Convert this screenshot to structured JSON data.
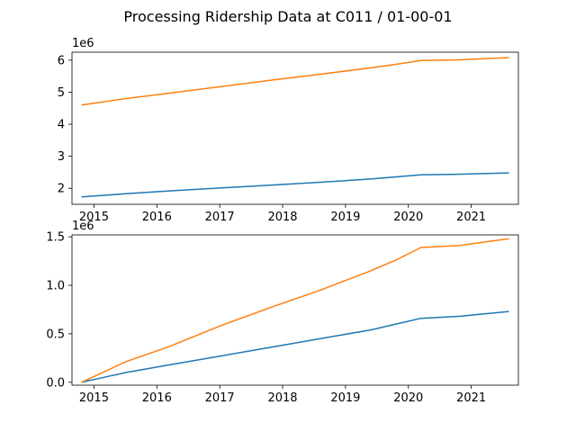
{
  "figure": {
    "title": "Processing Ridership Data at C011 / 01-00-01"
  },
  "chart_data": [
    {
      "type": "line",
      "title": "",
      "xlabel": "",
      "ylabel": "",
      "offset_label": "1e6",
      "xlim": [
        2014.65,
        2021.75
      ],
      "ylim": [
        1.5,
        6.25
      ],
      "x_ticks": [
        2015,
        2016,
        2017,
        2018,
        2019,
        2020,
        2021
      ],
      "x_tick_labels": [
        "2015",
        "2016",
        "2017",
        "2018",
        "2019",
        "2020",
        "2021"
      ],
      "y_ticks": [
        2,
        3,
        4,
        5,
        6
      ],
      "y_tick_labels": [
        "2",
        "3",
        "4",
        "5",
        "6"
      ],
      "grid": false,
      "series": [
        {
          "color": "#1f77b4",
          "x": [
            2014.8,
            2015.5,
            2016.2,
            2017.0,
            2017.8,
            2018.6,
            2019.4,
            2020.2,
            2020.8,
            2021.6
          ],
          "y": [
            1.73,
            1.83,
            1.92,
            2.01,
            2.1,
            2.19,
            2.29,
            2.42,
            2.44,
            2.48
          ]
        },
        {
          "color": "#ff7f0e",
          "x": [
            2014.8,
            2015.5,
            2016.2,
            2017.0,
            2017.8,
            2018.6,
            2019.4,
            2019.8,
            2020.2,
            2020.8,
            2021.6
          ],
          "y": [
            4.6,
            4.8,
            4.97,
            5.17,
            5.37,
            5.56,
            5.76,
            5.87,
            5.99,
            6.01,
            6.08
          ]
        }
      ]
    },
    {
      "type": "line",
      "title": "",
      "xlabel": "",
      "ylabel": "",
      "offset_label": "1e6",
      "xlim": [
        2014.65,
        2021.75
      ],
      "ylim": [
        -0.03,
        1.52
      ],
      "x_ticks": [
        2015,
        2016,
        2017,
        2018,
        2019,
        2020,
        2021
      ],
      "x_tick_labels": [
        "2015",
        "2016",
        "2017",
        "2018",
        "2019",
        "2020",
        "2021"
      ],
      "y_ticks": [
        0.0,
        0.5,
        1.0,
        1.5
      ],
      "y_tick_labels": [
        "0.0",
        "0.5",
        "1.0",
        "1.5"
      ],
      "grid": false,
      "series": [
        {
          "color": "#1f77b4",
          "x": [
            2014.8,
            2015.5,
            2016.2,
            2017.0,
            2017.8,
            2018.6,
            2019.4,
            2019.8,
            2020.2,
            2020.8,
            2021.6
          ],
          "y": [
            0.0,
            0.1,
            0.18,
            0.27,
            0.36,
            0.45,
            0.54,
            0.6,
            0.66,
            0.68,
            0.73
          ]
        },
        {
          "color": "#ff7f0e",
          "x": [
            2014.8,
            2015.5,
            2016.2,
            2017.0,
            2017.8,
            2018.6,
            2019.4,
            2019.8,
            2020.2,
            2020.8,
            2021.6
          ],
          "y": [
            0.0,
            0.21,
            0.37,
            0.58,
            0.77,
            0.95,
            1.15,
            1.26,
            1.39,
            1.41,
            1.48
          ]
        }
      ]
    }
  ]
}
